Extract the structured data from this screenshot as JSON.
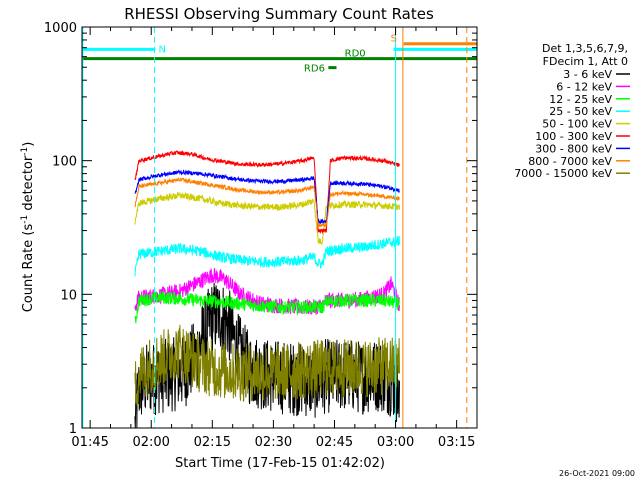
{
  "chart_data": {
    "type": "line",
    "title": "RHESSI Observing Summary Count Rates",
    "xlabel": "Start Time (17-Feb-15 01:42:02)",
    "ylabel_main": "Count Rate (s",
    "ylabel_sup1": "-1",
    "ylabel_mid": " detector",
    "ylabel_sup2": "-1",
    "ylabel_end": ")",
    "yscale": "log",
    "ylim": [
      1,
      1000
    ],
    "xlim_minutes": [
      1.0,
      98.0
    ],
    "x_ticks": [
      {
        "label": "01:45",
        "t": 3
      },
      {
        "label": "02:00",
        "t": 18
      },
      {
        "label": "02:15",
        "t": 33
      },
      {
        "label": "02:30",
        "t": 48
      },
      {
        "label": "02:45",
        "t": 63
      },
      {
        "label": "03:00",
        "t": 78
      },
      {
        "label": "03:15",
        "t": 93
      }
    ],
    "y_ticks": [
      {
        "label": "1",
        "v": 1
      },
      {
        "label": "10",
        "v": 10
      },
      {
        "label": "100",
        "v": 100
      },
      {
        "label": "1000",
        "v": 1000
      }
    ],
    "legend_header": [
      "Det 1,3,5,6,7,9,",
      "FDecim 1, Att 0"
    ],
    "series": [
      {
        "name": "3 - 6 keV",
        "color": "#000000",
        "points": [
          [
            14,
            1.0
          ],
          [
            14.5,
            1.5
          ],
          [
            15,
            2.0
          ],
          [
            17,
            2.3
          ],
          [
            20,
            2.4
          ],
          [
            23,
            2.5
          ],
          [
            26,
            2.6
          ],
          [
            29,
            3.5
          ],
          [
            31,
            5.0
          ],
          [
            33,
            6.8
          ],
          [
            35,
            7.0
          ],
          [
            37,
            6.0
          ],
          [
            39,
            4.0
          ],
          [
            42,
            2.8
          ],
          [
            46,
            2.5
          ],
          [
            50,
            2.4
          ],
          [
            55,
            2.3
          ],
          [
            58,
            2.2
          ],
          [
            60,
            2.3
          ],
          [
            61,
            2.5
          ],
          [
            62,
            2.4
          ],
          [
            65,
            2.5
          ],
          [
            70,
            2.4
          ],
          [
            74,
            2.5
          ],
          [
            77,
            2.3
          ],
          [
            78.5,
            2.0
          ],
          [
            79,
            1.2
          ]
        ],
        "noise": 0.28
      },
      {
        "name": "6 - 12 keV",
        "color": "#ff00ff",
        "points": [
          [
            14,
            8.0
          ],
          [
            15,
            9.5
          ],
          [
            20,
            9.8
          ],
          [
            25,
            10.5
          ],
          [
            30,
            12.5
          ],
          [
            33,
            14.0
          ],
          [
            36,
            13.0
          ],
          [
            40,
            10.0
          ],
          [
            45,
            8.5
          ],
          [
            50,
            8.2
          ],
          [
            55,
            8.0
          ],
          [
            58,
            8.0
          ],
          [
            60,
            8.3
          ],
          [
            61,
            9.0
          ],
          [
            65,
            9.0
          ],
          [
            70,
            9.2
          ],
          [
            75,
            10.0
          ],
          [
            77,
            12.0
          ],
          [
            78,
            10.0
          ],
          [
            79,
            8.0
          ]
        ],
        "noise": 0.06
      },
      {
        "name": "12 - 25 keV",
        "color": "#00ff00",
        "points": [
          [
            14,
            6.0
          ],
          [
            15,
            9.0
          ],
          [
            20,
            9.5
          ],
          [
            25,
            9.3
          ],
          [
            30,
            9.0
          ],
          [
            35,
            8.8
          ],
          [
            40,
            8.5
          ],
          [
            45,
            8.2
          ],
          [
            50,
            8.0
          ],
          [
            55,
            8.0
          ],
          [
            58,
            8.0
          ],
          [
            60,
            8.0
          ],
          [
            61,
            8.8
          ],
          [
            65,
            9.0
          ],
          [
            70,
            9.0
          ],
          [
            75,
            9.0
          ],
          [
            79,
            8.5
          ]
        ],
        "noise": 0.05
      },
      {
        "name": "25 - 50 keV",
        "color": "#00ffff",
        "points": [
          [
            14,
            14.0
          ],
          [
            15,
            20.0
          ],
          [
            20,
            21.0
          ],
          [
            25,
            22.0
          ],
          [
            30,
            21.0
          ],
          [
            35,
            19.0
          ],
          [
            40,
            18.0
          ],
          [
            45,
            17.5
          ],
          [
            50,
            17.5
          ],
          [
            55,
            18.0
          ],
          [
            58,
            19.0
          ],
          [
            59,
            17.0
          ],
          [
            60,
            17.0
          ],
          [
            61,
            21.0
          ],
          [
            65,
            22.0
          ],
          [
            70,
            22.5
          ],
          [
            75,
            24.0
          ],
          [
            79,
            25.0
          ]
        ],
        "noise": 0.04
      },
      {
        "name": "50 - 100 keV",
        "color": "#cccc00",
        "points": [
          [
            14,
            35.0
          ],
          [
            15,
            48.0
          ],
          [
            20,
            52.0
          ],
          [
            25,
            55.0
          ],
          [
            30,
            52.0
          ],
          [
            35,
            48.0
          ],
          [
            40,
            46.0
          ],
          [
            45,
            45.0
          ],
          [
            50,
            45.0
          ],
          [
            55,
            47.0
          ],
          [
            58,
            50.0
          ],
          [
            59,
            25.0
          ],
          [
            60,
            25.0
          ],
          [
            61,
            46.0
          ],
          [
            65,
            47.0
          ],
          [
            70,
            47.0
          ],
          [
            75,
            46.0
          ],
          [
            79,
            45.0
          ]
        ],
        "noise": 0.025
      },
      {
        "name": "100 - 300 keV",
        "color": "#ff0000",
        "points": [
          [
            14,
            70.0
          ],
          [
            15,
            100.0
          ],
          [
            20,
            108.0
          ],
          [
            24,
            115.0
          ],
          [
            28,
            112.0
          ],
          [
            32,
            103.0
          ],
          [
            36,
            98.0
          ],
          [
            40,
            94.0
          ],
          [
            45,
            93.0
          ],
          [
            50,
            95.0
          ],
          [
            55,
            100.0
          ],
          [
            58,
            105.0
          ],
          [
            59,
            30.0
          ],
          [
            61,
            30.0
          ],
          [
            62,
            100.0
          ],
          [
            65,
            105.0
          ],
          [
            70,
            104.0
          ],
          [
            75,
            100.0
          ],
          [
            79,
            92.0
          ]
        ],
        "noise": 0.015
      },
      {
        "name": "300 - 800 keV",
        "color": "#0000ff",
        "points": [
          [
            14,
            55.0
          ],
          [
            15,
            72.0
          ],
          [
            20,
            78.0
          ],
          [
            25,
            82.0
          ],
          [
            30,
            80.0
          ],
          [
            35,
            76.0
          ],
          [
            40,
            72.0
          ],
          [
            45,
            70.0
          ],
          [
            50,
            70.0
          ],
          [
            55,
            72.0
          ],
          [
            58,
            74.0
          ],
          [
            59,
            35.0
          ],
          [
            61,
            35.0
          ],
          [
            62,
            68.0
          ],
          [
            65,
            68.0
          ],
          [
            70,
            67.0
          ],
          [
            75,
            64.0
          ],
          [
            79,
            60.0
          ]
        ],
        "noise": 0.015
      },
      {
        "name": "800 - 7000 keV",
        "color": "#ff8000",
        "points": [
          [
            14,
            45.0
          ],
          [
            15,
            64.0
          ],
          [
            20,
            68.0
          ],
          [
            25,
            72.0
          ],
          [
            30,
            68.0
          ],
          [
            35,
            64.0
          ],
          [
            40,
            60.0
          ],
          [
            45,
            58.0
          ],
          [
            50,
            58.0
          ],
          [
            55,
            60.0
          ],
          [
            58,
            64.0
          ],
          [
            59,
            33.0
          ],
          [
            61,
            33.0
          ],
          [
            62,
            56.0
          ],
          [
            65,
            57.0
          ],
          [
            70,
            56.0
          ],
          [
            75,
            54.0
          ],
          [
            79,
            52.0
          ]
        ],
        "noise": 0.015
      },
      {
        "name": "7000 - 15000 keV",
        "color": "#808000",
        "points": [
          [
            14,
            2.0
          ],
          [
            15,
            2.5
          ],
          [
            18,
            3.0
          ],
          [
            20,
            3.2
          ],
          [
            23,
            3.6
          ],
          [
            25,
            3.8
          ],
          [
            28,
            3.3
          ],
          [
            30,
            3.0
          ],
          [
            35,
            2.7
          ],
          [
            40,
            2.6
          ],
          [
            45,
            2.6
          ],
          [
            50,
            2.6
          ],
          [
            55,
            2.7
          ],
          [
            60,
            2.8
          ],
          [
            65,
            2.8
          ],
          [
            70,
            2.8
          ],
          [
            75,
            2.9
          ],
          [
            79,
            3.0
          ]
        ],
        "noise": 0.22
      }
    ],
    "annotations": {
      "N": "N",
      "S": "S",
      "RD0": "RD0",
      "RD6": "RD6",
      "attenuator_level": 580,
      "night_level": 680,
      "s_level": 750
    },
    "timestamp": "26-Oct-2021 09:00"
  }
}
